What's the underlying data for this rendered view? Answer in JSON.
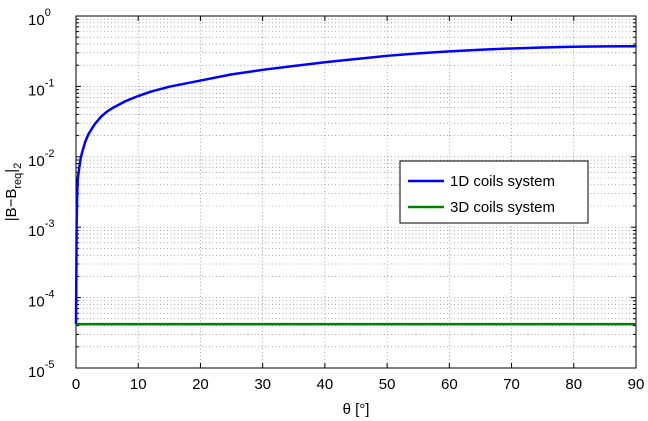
{
  "chart_data": {
    "type": "line",
    "title": "",
    "xlabel": "θ [°]",
    "ylabel": {
      "base": "|B−B",
      "sub_inner": "req",
      "close": "|",
      "sub_outer": "2"
    },
    "xlim": [
      0,
      90
    ],
    "ylim": [
      1e-05,
      1
    ],
    "yscale": "log",
    "grid": true,
    "grid_style": "dotted",
    "legend_position": "center-right",
    "xticks": [
      0,
      10,
      20,
      30,
      40,
      50,
      60,
      70,
      80,
      90
    ],
    "xtick_labels": [
      "0",
      "10",
      "20",
      "30",
      "40",
      "50",
      "60",
      "70",
      "80",
      "90"
    ],
    "yticks": [
      {
        "base": "10",
        "exp": "-5"
      },
      {
        "base": "10",
        "exp": "-4"
      },
      {
        "base": "10",
        "exp": "-3"
      },
      {
        "base": "10",
        "exp": "-2"
      },
      {
        "base": "10",
        "exp": "-1"
      },
      {
        "base": "10",
        "exp": "0"
      }
    ],
    "series": [
      {
        "name": "1D coils system",
        "color": "#0000ff",
        "x": [
          0,
          0.05,
          0.1,
          0.2,
          0.3,
          0.5,
          0.75,
          1,
          1.5,
          2,
          3,
          4,
          5,
          6,
          8,
          10,
          12,
          15,
          20,
          25,
          30,
          35,
          40,
          45,
          50,
          55,
          60,
          65,
          70,
          75,
          80,
          85,
          90
        ],
        "y": [
          4.2e-05,
          0.0002,
          0.0011,
          0.0032,
          0.005,
          0.0068,
          0.0095,
          0.0117,
          0.0165,
          0.021,
          0.029,
          0.037,
          0.044,
          0.05,
          0.062,
          0.073,
          0.084,
          0.099,
          0.121,
          0.148,
          0.172,
          0.195,
          0.22,
          0.245,
          0.272,
          0.295,
          0.315,
          0.332,
          0.346,
          0.357,
          0.365,
          0.37,
          0.372
        ]
      },
      {
        "name": "3D coils system",
        "color": "#008000",
        "x": [
          0,
          90
        ],
        "y": [
          4.2e-05,
          4.2e-05
        ]
      }
    ]
  }
}
